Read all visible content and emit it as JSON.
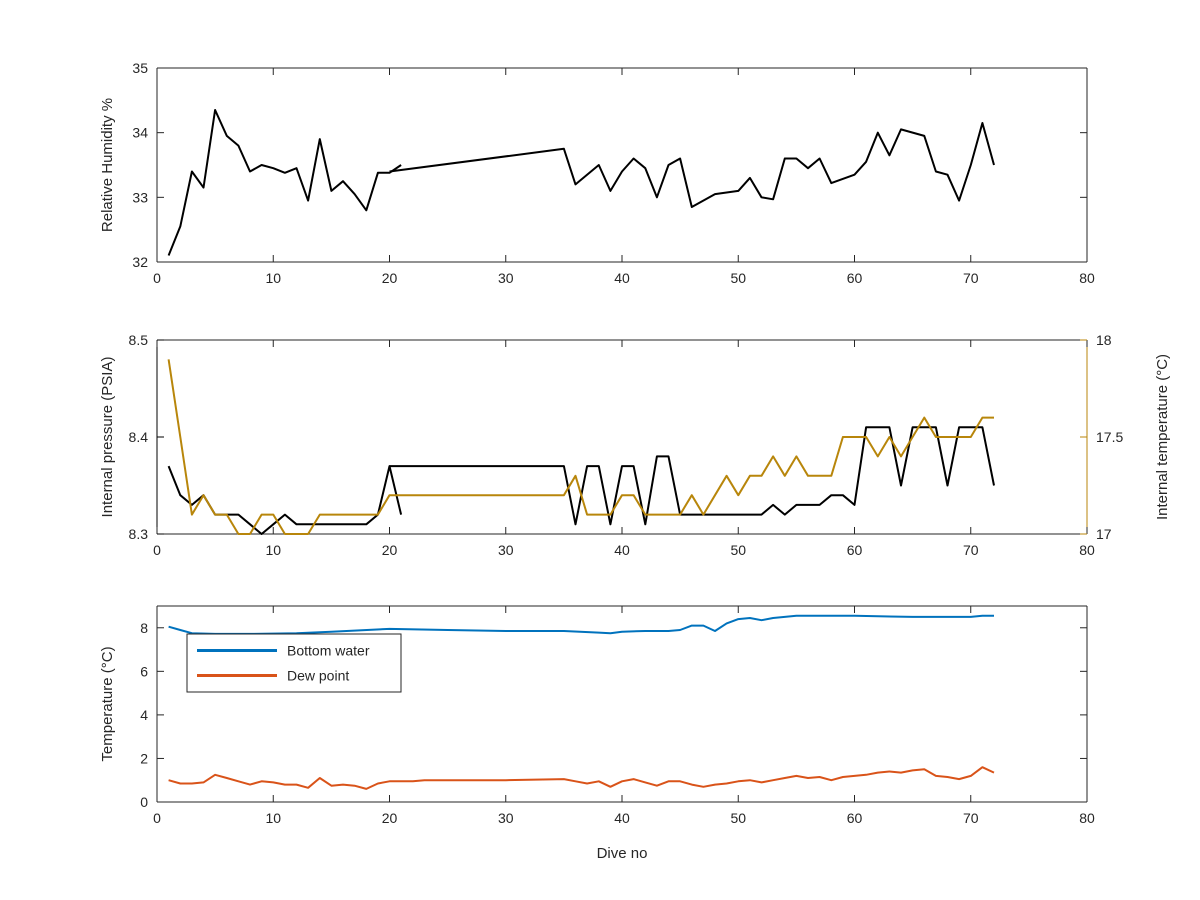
{
  "chart_data": [
    {
      "type": "line",
      "title": "",
      "xlabel": "",
      "ylabel": "Relative Humidity %",
      "xlim": [
        0,
        80
      ],
      "ylim": [
        32,
        35
      ],
      "xticks": [
        "0",
        "10",
        "20",
        "30",
        "40",
        "50",
        "60",
        "70",
        "80"
      ],
      "yticks": [
        "32",
        "33",
        "34",
        "35"
      ],
      "grid": false,
      "colors": {
        "line": "#000000"
      },
      "series": [
        {
          "color": "#000000",
          "segments": [
            {
              "x": [
                1,
                2,
                3,
                4,
                5,
                6,
                7,
                8,
                9,
                10,
                11,
                12,
                13,
                14,
                15,
                16,
                17,
                18,
                19,
                20,
                21
              ],
              "y": [
                32.1,
                32.55,
                33.4,
                33.15,
                34.35,
                33.95,
                33.8,
                33.4,
                33.5,
                33.45,
                33.38,
                33.45,
                32.95,
                33.9,
                33.1,
                33.25,
                33.05,
                32.8,
                33.38,
                33.38,
                33.5
              ]
            },
            {
              "x": [
                20,
                35,
                36,
                38,
                39,
                40,
                41,
                42,
                43,
                44,
                45,
                46,
                48,
                50,
                51,
                52,
                53,
                54,
                55,
                56,
                57,
                58,
                60,
                61,
                62,
                63,
                64,
                66,
                67,
                68,
                69,
                70,
                71,
                72
              ],
              "y": [
                33.4,
                33.75,
                33.2,
                33.5,
                33.1,
                33.4,
                33.6,
                33.45,
                33.0,
                33.5,
                33.6,
                32.85,
                33.05,
                33.1,
                33.3,
                33.0,
                32.97,
                33.6,
                33.6,
                33.45,
                33.6,
                33.22,
                33.35,
                33.55,
                34.0,
                33.65,
                34.05,
                33.95,
                33.4,
                33.35,
                32.95,
                33.5,
                34.15,
                33.5
              ]
            }
          ]
        }
      ]
    },
    {
      "type": "line",
      "title": "",
      "xlabel": "",
      "ylabel": "Internal pressure (PSIA)",
      "y2label": "Internal temperature (°C)",
      "xlim": [
        0,
        80
      ],
      "ylim": [
        8.3,
        8.5
      ],
      "y2lim": [
        17,
        18
      ],
      "xticks": [
        "0",
        "10",
        "20",
        "30",
        "40",
        "50",
        "60",
        "70",
        "80"
      ],
      "yticks": [
        "8.3",
        "8.4",
        "8.5"
      ],
      "y2ticks": [
        "17",
        "17.5",
        "18"
      ],
      "grid": false,
      "colors": {
        "left_axis": "#000000",
        "right_axis": "#b8860b"
      },
      "series": [
        {
          "axis": "left",
          "color": "#000000",
          "segments": [
            {
              "x": [
                1,
                2,
                3,
                4,
                5,
                6,
                7,
                8,
                9,
                10,
                11,
                12,
                13,
                14,
                15,
                16,
                17,
                18,
                19,
                20,
                21
              ],
              "y": [
                8.37,
                8.34,
                8.33,
                8.34,
                8.32,
                8.32,
                8.32,
                8.31,
                8.3,
                8.31,
                8.32,
                8.31,
                8.31,
                8.31,
                8.31,
                8.31,
                8.31,
                8.31,
                8.32,
                8.37,
                8.32
              ]
            },
            {
              "x": [
                20,
                35,
                36,
                37,
                38,
                39,
                40,
                41,
                42,
                43,
                44,
                45,
                46,
                47,
                48,
                49,
                50,
                51,
                52,
                53,
                54,
                55,
                56,
                57,
                58,
                59,
                60,
                61,
                62,
                63,
                64,
                65,
                66,
                67,
                68,
                69,
                70,
                71,
                72
              ],
              "y": [
                8.37,
                8.37,
                8.31,
                8.37,
                8.37,
                8.31,
                8.37,
                8.37,
                8.31,
                8.38,
                8.38,
                8.32,
                8.32,
                8.32,
                8.32,
                8.32,
                8.32,
                8.32,
                8.32,
                8.33,
                8.32,
                8.33,
                8.33,
                8.33,
                8.34,
                8.34,
                8.33,
                8.41,
                8.41,
                8.41,
                8.35,
                8.41,
                8.41,
                8.41,
                8.35,
                8.41,
                8.41,
                8.41,
                8.35
              ]
            }
          ]
        },
        {
          "axis": "right",
          "color": "#b8860b",
          "segments": [
            {
              "x": [
                1,
                2,
                3,
                4,
                5,
                6,
                7,
                8,
                9,
                10,
                11,
                12,
                13,
                14,
                15,
                16,
                17,
                18,
                19,
                20,
                21,
                35,
                36,
                37,
                38,
                39,
                40,
                41,
                42,
                43,
                44,
                45,
                46,
                47,
                48,
                49,
                50,
                51,
                52,
                53,
                54,
                55,
                56,
                57,
                58,
                59,
                60,
                61,
                62,
                63,
                64,
                65,
                66,
                67,
                68,
                69,
                70,
                71,
                72
              ],
              "y": [
                17.9,
                17.5,
                17.1,
                17.2,
                17.1,
                17.1,
                17.0,
                17.0,
                17.1,
                17.1,
                17.0,
                17.0,
                17.0,
                17.1,
                17.1,
                17.1,
                17.1,
                17.1,
                17.1,
                17.2,
                17.2,
                17.2,
                17.3,
                17.1,
                17.1,
                17.1,
                17.2,
                17.2,
                17.1,
                17.1,
                17.1,
                17.1,
                17.2,
                17.1,
                17.2,
                17.3,
                17.2,
                17.3,
                17.3,
                17.4,
                17.3,
                17.4,
                17.3,
                17.3,
                17.3,
                17.5,
                17.5,
                17.5,
                17.4,
                17.5,
                17.4,
                17.5,
                17.6,
                17.5,
                17.5,
                17.5,
                17.5,
                17.6,
                17.6
              ]
            }
          ]
        }
      ]
    },
    {
      "type": "line",
      "title": "",
      "xlabel": "Dive no",
      "ylabel": "Temperature (°C)",
      "xlim": [
        0,
        80
      ],
      "ylim": [
        0,
        9
      ],
      "xticks": [
        "0",
        "10",
        "20",
        "30",
        "40",
        "50",
        "60",
        "70",
        "80"
      ],
      "yticks": [
        "0",
        "2",
        "4",
        "6",
        "8"
      ],
      "grid": false,
      "legend": "top-left",
      "series": [
        {
          "name": "Bottom water",
          "color": "#0072bd",
          "segments": [
            {
              "x": [
                1,
                2,
                3,
                5,
                8,
                12,
                15,
                20,
                25,
                30,
                35,
                38,
                39,
                40,
                42,
                44,
                45,
                46,
                47,
                48,
                49,
                50,
                51,
                52,
                53,
                54,
                55,
                60,
                65,
                70,
                71,
                72
              ],
              "y": [
                8.05,
                7.9,
                7.75,
                7.72,
                7.72,
                7.75,
                7.82,
                7.95,
                7.9,
                7.85,
                7.85,
                7.78,
                7.75,
                7.82,
                7.85,
                7.85,
                7.9,
                8.1,
                8.1,
                7.85,
                8.2,
                8.4,
                8.45,
                8.35,
                8.45,
                8.5,
                8.55,
                8.55,
                8.5,
                8.5,
                8.55,
                8.55
              ]
            }
          ]
        },
        {
          "name": "Dew point",
          "color": "#d95319",
          "segments": [
            {
              "x": [
                1,
                2,
                3,
                4,
                5,
                6,
                7,
                8,
                9,
                10,
                11,
                12,
                13,
                14,
                15,
                16,
                17,
                18,
                19,
                20,
                21,
                22,
                23,
                25,
                30,
                35,
                36,
                37,
                38,
                39,
                40,
                41,
                42,
                43,
                44,
                45,
                46,
                47,
                48,
                49,
                50,
                51,
                52,
                53,
                54,
                55,
                56,
                57,
                58,
                59,
                60,
                61,
                62,
                63,
                64,
                65,
                66,
                67,
                68,
                69,
                70,
                71,
                72
              ],
              "y": [
                1.0,
                0.85,
                0.85,
                0.9,
                1.25,
                1.1,
                0.95,
                0.8,
                0.95,
                0.9,
                0.8,
                0.8,
                0.65,
                1.1,
                0.75,
                0.8,
                0.75,
                0.6,
                0.85,
                0.95,
                0.95,
                0.95,
                1.0,
                1.0,
                1.0,
                1.05,
                0.95,
                0.85,
                0.95,
                0.7,
                0.95,
                1.05,
                0.9,
                0.75,
                0.95,
                0.95,
                0.8,
                0.7,
                0.8,
                0.85,
                0.95,
                1.0,
                0.9,
                1.0,
                1.1,
                1.2,
                1.1,
                1.15,
                1.0,
                1.15,
                1.2,
                1.25,
                1.35,
                1.4,
                1.35,
                1.45,
                1.5,
                1.2,
                1.15,
                1.05,
                1.2,
                1.6,
                1.35
              ]
            }
          ]
        }
      ]
    }
  ]
}
